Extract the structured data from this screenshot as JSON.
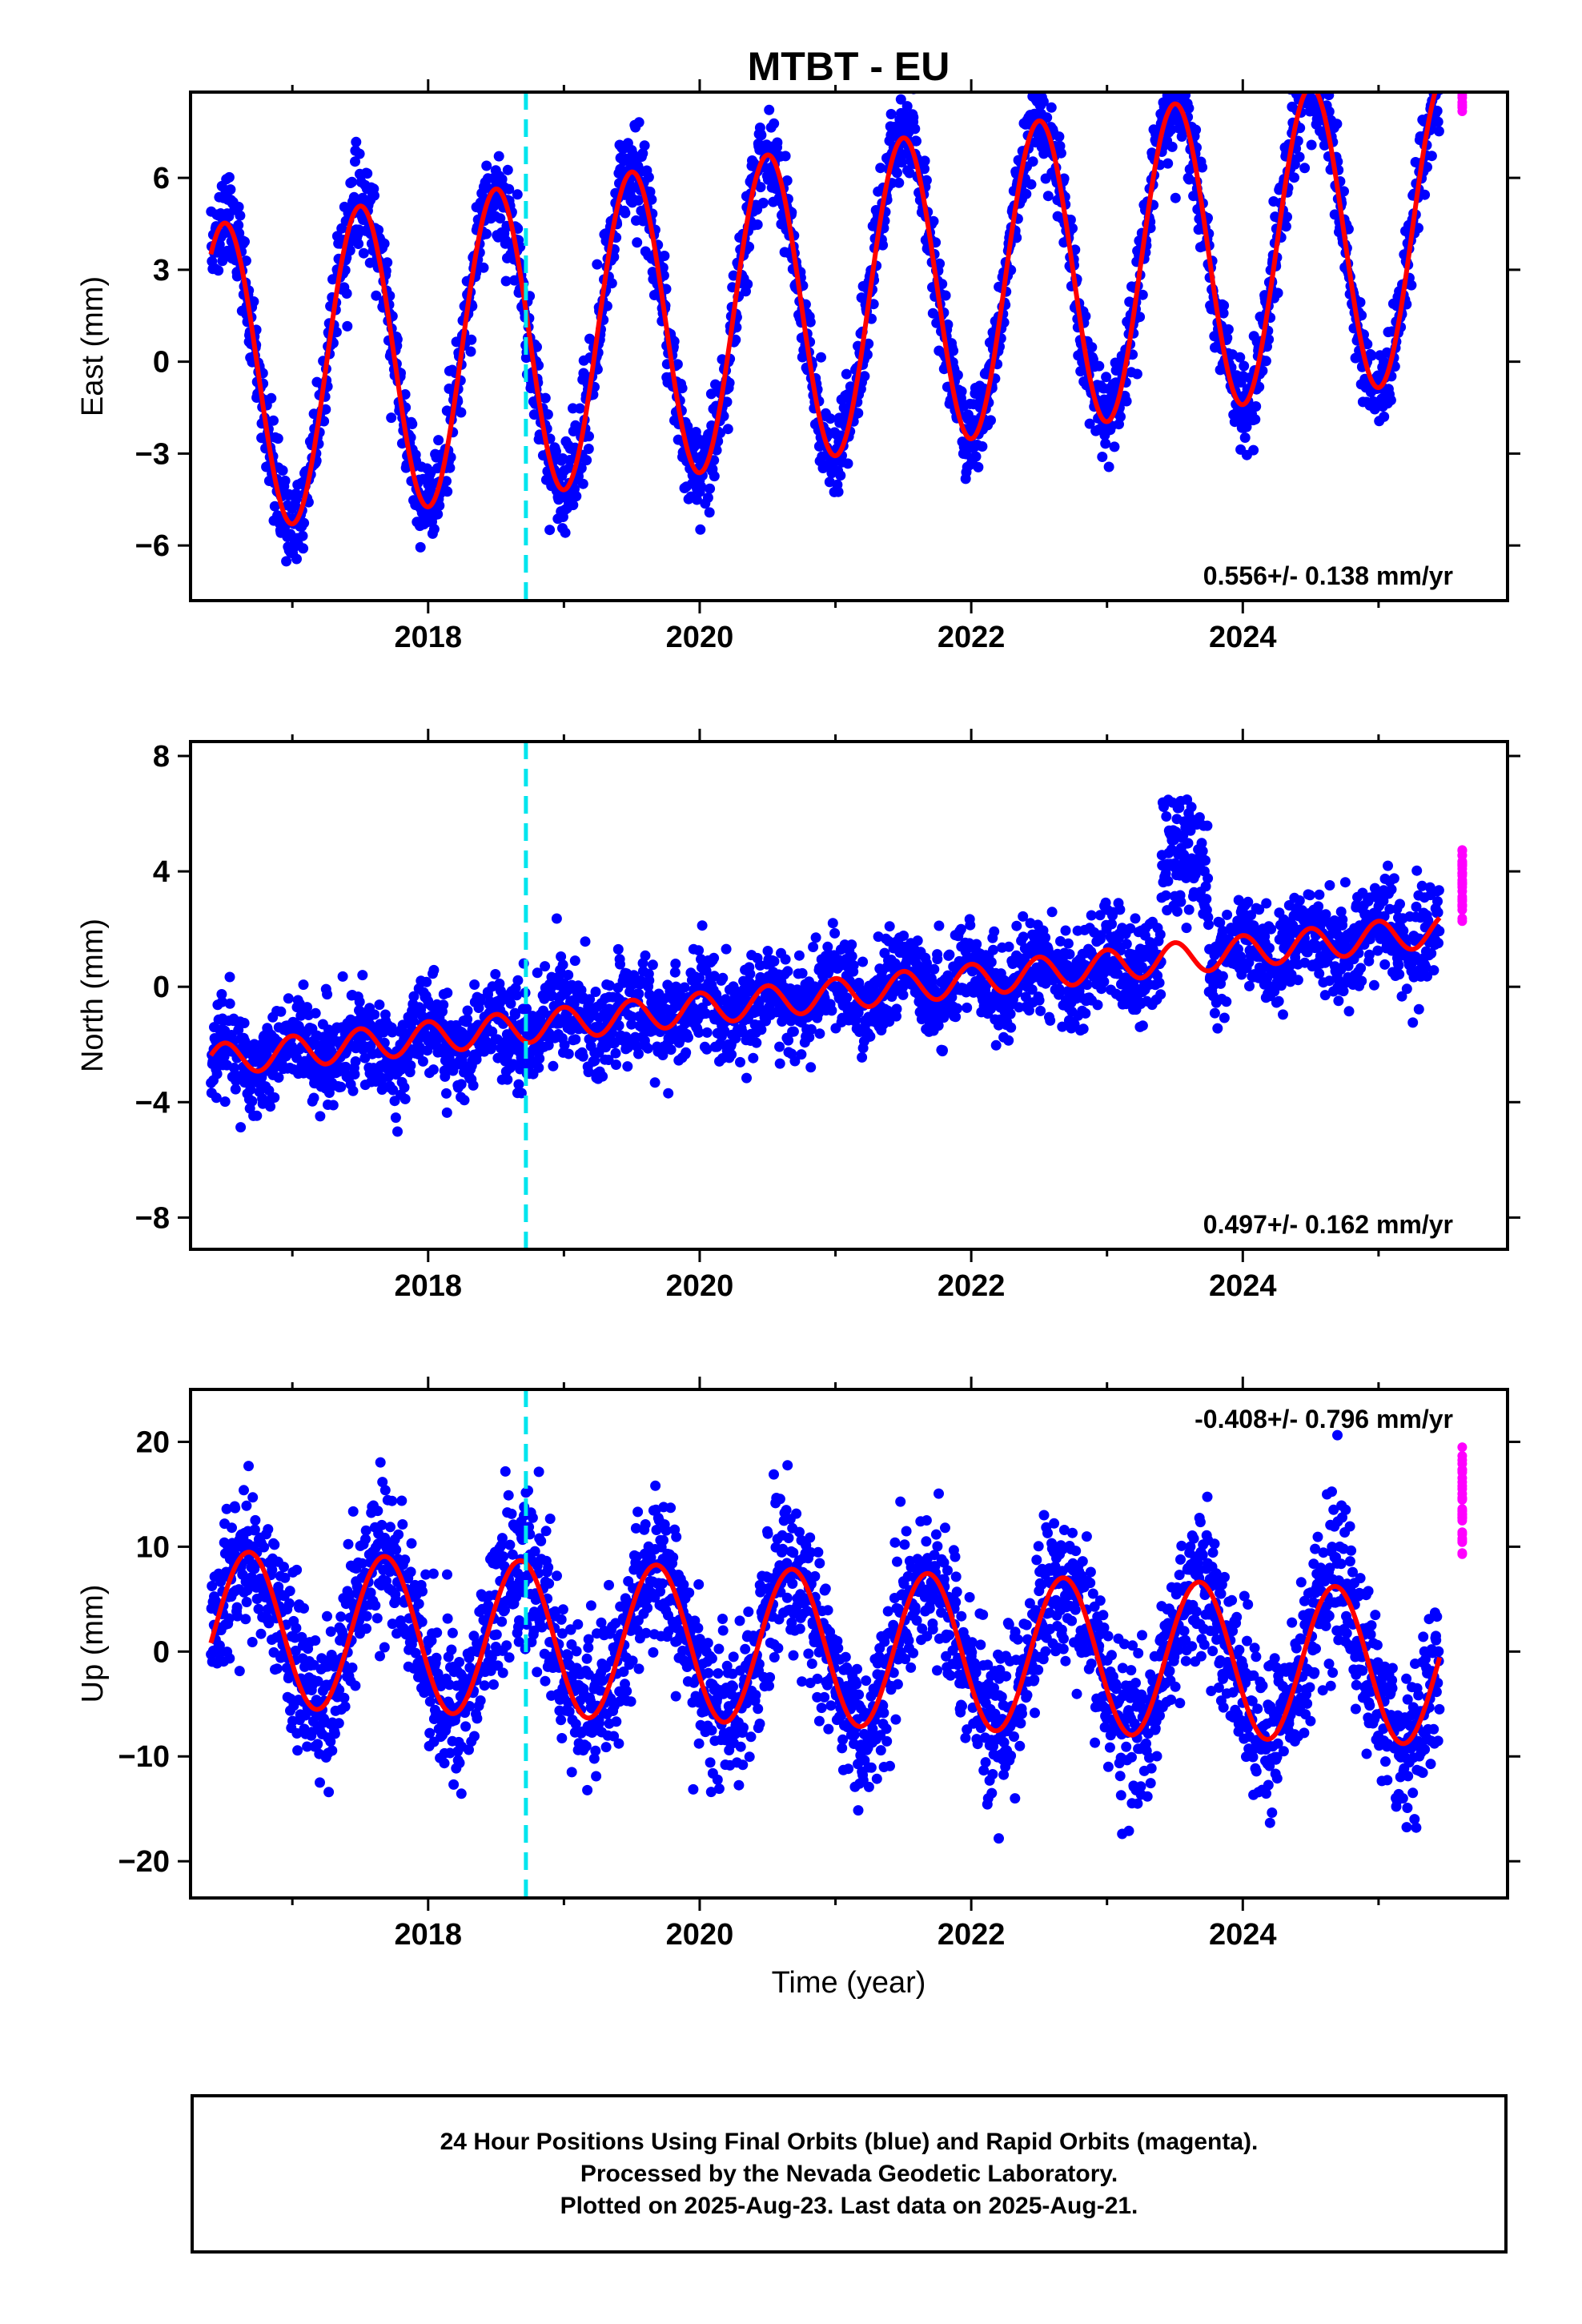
{
  "title": "MTBT - EU",
  "colors": {
    "final_points": "#0000ff",
    "rapid_points": "#ff00ff",
    "model_curve": "#ff0000",
    "antenna_change_line": "#00e5ee",
    "frame": "#000000"
  },
  "chart_data": [
    {
      "type": "scatter",
      "name": "east",
      "ylabel": "East (mm)",
      "xlabel": "",
      "x_tick_labels": [
        "2018",
        "2020",
        "2022",
        "2024"
      ],
      "y_tick_labels": [
        "−6",
        "−3",
        "0",
        "3",
        "6"
      ],
      "y_ticks": [
        -6,
        -3,
        0,
        3,
        6
      ],
      "xlim": [
        2016.25,
        2025.95
      ],
      "ylim": [
        -7.8,
        8.8
      ],
      "grid": false,
      "rate_label": "0.556+/- 0.138 mm/yr",
      "rate_label_position": "bottom-right",
      "vertical_marker_x": 2018.72,
      "data_start": 2016.4,
      "data_end": 2025.45,
      "rapid_start": 2025.47,
      "rapid_end": 2025.64,
      "model": {
        "offset": -0.58,
        "rate": 0.556,
        "annual_cos": 0.0,
        "annual_sin": 0.0,
        "amp": 5.05,
        "phase_peak": 2016.5,
        "period": 1.0
      },
      "noise_sd": 0.75,
      "points_per_year": 300
    },
    {
      "type": "scatter",
      "name": "north",
      "ylabel": "North (mm)",
      "xlabel": "",
      "x_tick_labels": [
        "2018",
        "2020",
        "2022",
        "2024"
      ],
      "y_tick_labels": [
        "−8",
        "−4",
        "0",
        "4",
        "8"
      ],
      "y_ticks": [
        -8,
        -4,
        0,
        4,
        8
      ],
      "xlim": [
        2016.25,
        2025.95
      ],
      "ylim": [
        -9.1,
        8.5
      ],
      "grid": false,
      "rate_label": "0.497+/- 0.162 mm/yr",
      "rate_label_position": "bottom-right",
      "vertical_marker_x": 2018.72,
      "data_start": 2016.4,
      "data_end": 2025.45,
      "rapid_start": 2025.47,
      "rapid_end": 2025.64,
      "model": {
        "offset": -2.55,
        "rate": 0.497,
        "amp": 0.55,
        "phase_peak": 2016.5,
        "period": 0.5
      },
      "noise_sd": 0.85,
      "points_per_year": 300
    },
    {
      "type": "scatter",
      "name": "up",
      "ylabel": "Up (mm)",
      "xlabel": "Time (year)",
      "x_tick_labels": [
        "2018",
        "2020",
        "2022",
        "2024"
      ],
      "y_tick_labels": [
        "−20",
        "−10",
        "0",
        "10",
        "20"
      ],
      "y_ticks": [
        -20,
        -10,
        0,
        10,
        20
      ],
      "xlim": [
        2016.25,
        2025.95
      ],
      "ylim": [
        -23.5,
        25.0
      ],
      "grid": false,
      "rate_label": "-0.408+/- 0.796 mm/yr",
      "rate_label_position": "top-right",
      "vertical_marker_x": 2018.72,
      "data_start": 2016.4,
      "data_end": 2025.45,
      "rapid_start": 2025.47,
      "rapid_end": 2025.64,
      "model": {
        "offset": 2.2,
        "rate": -0.408,
        "amp": 7.4,
        "phase_peak": 2016.68,
        "period": 1.0
      },
      "noise_sd": 3.6,
      "points_per_year": 300
    }
  ],
  "x_tick_positions": [
    2018,
    2020,
    2022,
    2024
  ],
  "minor_x_ticks": [
    2017,
    2019,
    2021,
    2023,
    2025
  ],
  "caption": {
    "line1": "24 Hour Positions Using Final Orbits (blue) and Rapid Orbits (magenta).",
    "line2": "Processed by the Nevada Geodetic Laboratory.",
    "line3": "Plotted on 2025-Aug-23. Last data on 2025-Aug-21."
  }
}
